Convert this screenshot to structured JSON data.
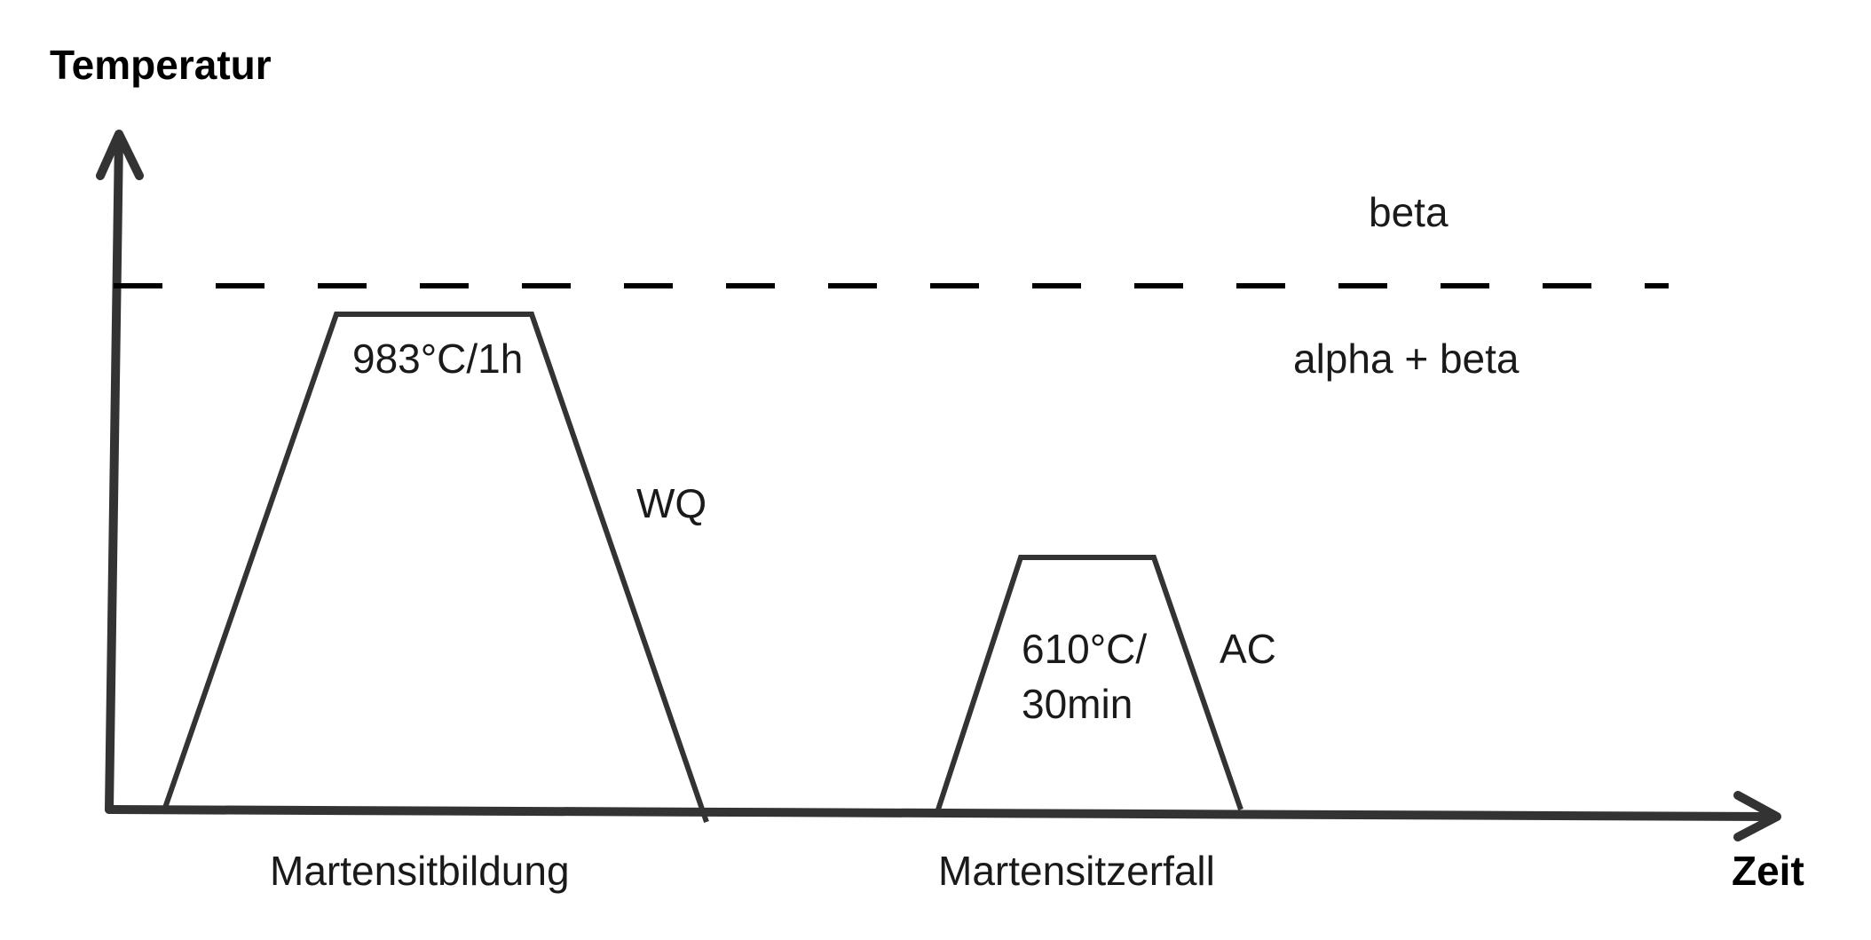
{
  "axes": {
    "y_title": "Temperatur",
    "x_title": "Zeit"
  },
  "phases": {
    "upper": "beta",
    "lower": "alpha + beta"
  },
  "step1": {
    "hold": "983°C/1h",
    "cooling": "WQ",
    "name": "Martensitbildung"
  },
  "step2": {
    "hold_line1": "610°C/",
    "hold_line2": "30min",
    "cooling": "AC",
    "name": "Martensitzerfall"
  },
  "colors": {
    "line": "#333333",
    "text": "#1a1a1a"
  }
}
